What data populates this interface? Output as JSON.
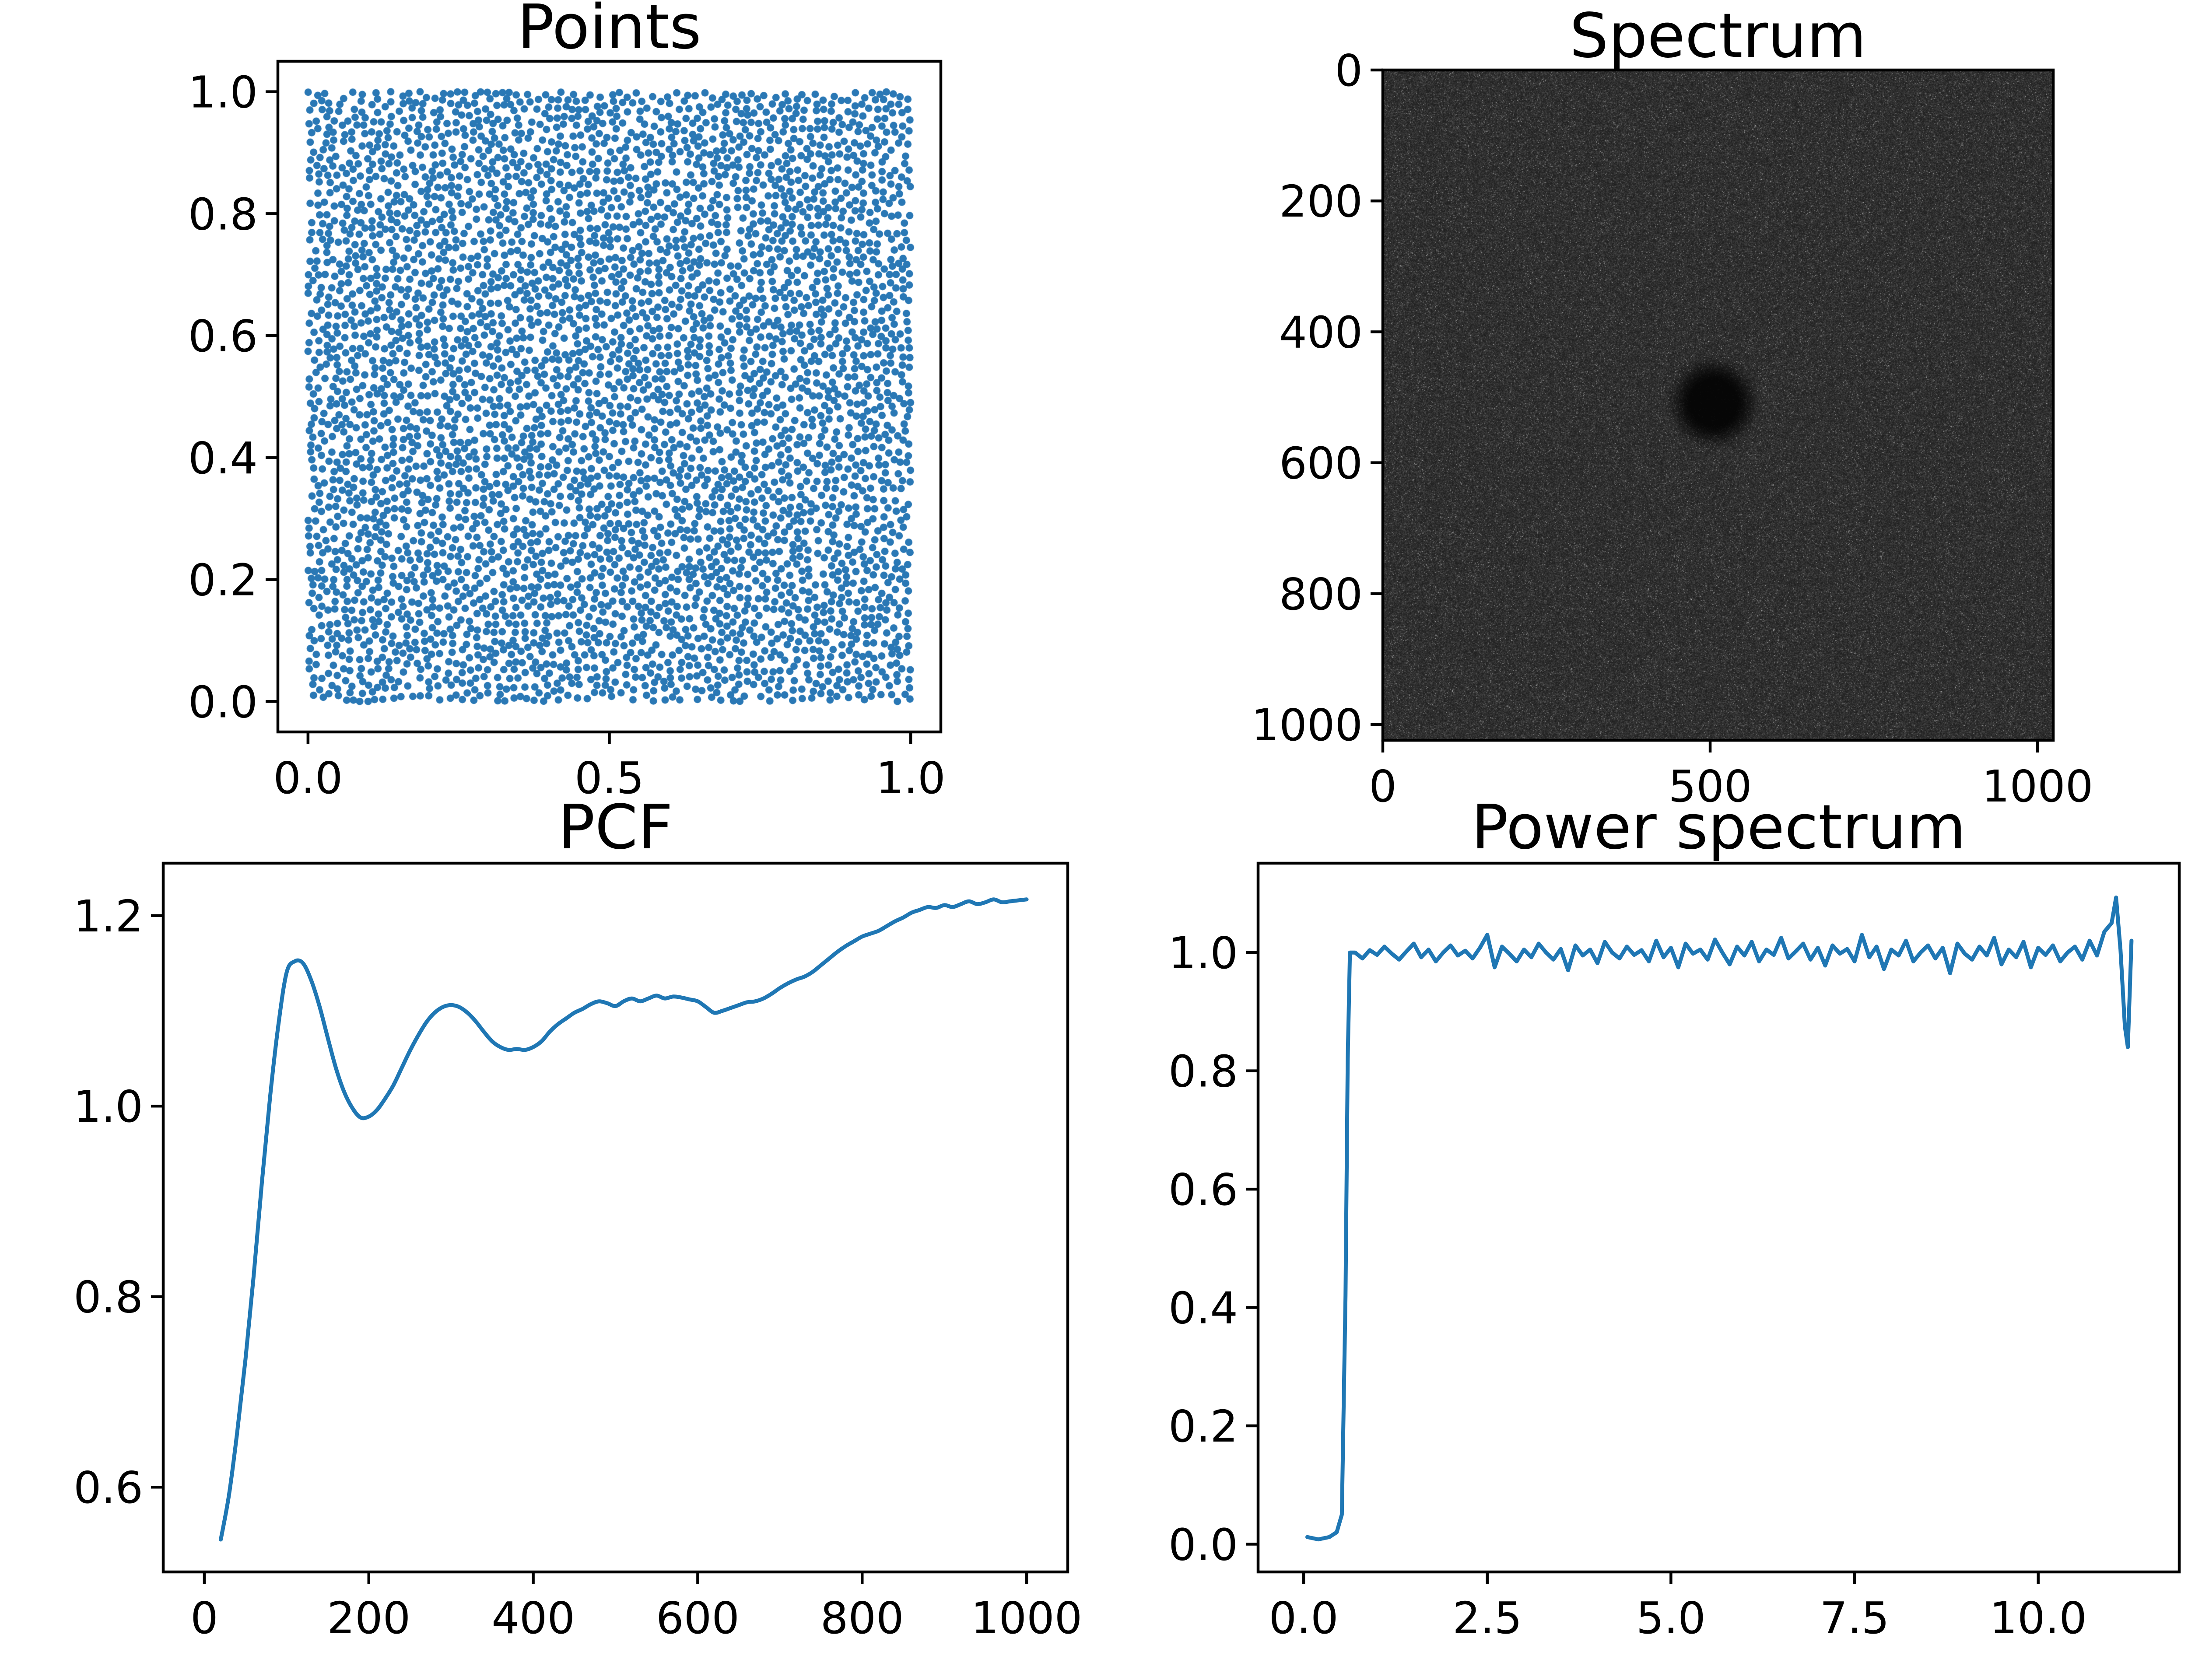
{
  "figure": {
    "background": "#ffffff"
  },
  "colors": {
    "series_blue": "#1f77b4",
    "marker_blue": "#2a78b5",
    "spine_black": "#000000",
    "text_black": "#000000",
    "spectrum_dark": "#2e2e2e"
  },
  "chart_data": [
    {
      "id": "points",
      "type": "scatter",
      "title": "Points",
      "x_tick_values": [
        0.0,
        0.5,
        1.0
      ],
      "x_tick_labels": [
        "0.0",
        "0.5",
        "1.0"
      ],
      "y_tick_values": [
        0.0,
        0.2,
        0.4,
        0.6,
        0.8,
        1.0
      ],
      "y_tick_labels": [
        "0.0",
        "0.2",
        "0.4",
        "0.6",
        "0.8",
        "1.0"
      ],
      "xlim": [
        -0.05,
        1.05
      ],
      "ylim": [
        -0.05,
        1.05
      ],
      "n_points": 4400,
      "min_distance": 0.0105,
      "marker_radius_px": 8.5,
      "distribution": "blue-noise (Poisson-disk) uniform points in unit square",
      "seed": 20240613
    },
    {
      "id": "spectrum",
      "type": "heatmap",
      "title": "Spectrum",
      "x_tick_values": [
        0,
        500,
        1000
      ],
      "x_tick_labels": [
        "0",
        "500",
        "1000"
      ],
      "y_tick_values": [
        0,
        200,
        400,
        600,
        800,
        1000
      ],
      "y_tick_labels": [
        "0",
        "200",
        "400",
        "600",
        "800",
        "1000"
      ],
      "extent": [
        0,
        1024,
        1024,
        0
      ],
      "description": "grainy grayscale Fourier magnitude image; black disk (suppressed low frequencies) at center, noise brightening to uniform beyond the disk",
      "disk_center": [
        505,
        508
      ],
      "disk_radius": 34,
      "seed": 987654321
    },
    {
      "id": "pcf",
      "type": "line",
      "title": "PCF",
      "x_tick_values": [
        0,
        200,
        400,
        600,
        800,
        1000
      ],
      "x_tick_labels": [
        "0",
        "200",
        "400",
        "600",
        "800",
        "1000"
      ],
      "y_tick_values": [
        0.6,
        0.8,
        1.0,
        1.2
      ],
      "y_tick_labels": [
        "0.6",
        "0.8",
        "1.0",
        "1.2"
      ],
      "xlim": [
        -50,
        1050
      ],
      "ylim": [
        0.511,
        1.255
      ],
      "smooth": true,
      "points": [
        [
          20,
          0.545
        ],
        [
          30,
          0.592
        ],
        [
          40,
          0.658
        ],
        [
          50,
          0.734
        ],
        [
          60,
          0.822
        ],
        [
          70,
          0.92
        ],
        [
          80,
          1.01
        ],
        [
          90,
          1.085
        ],
        [
          100,
          1.14
        ],
        [
          110,
          1.152
        ],
        [
          120,
          1.15
        ],
        [
          130,
          1.132
        ],
        [
          140,
          1.105
        ],
        [
          150,
          1.072
        ],
        [
          160,
          1.04
        ],
        [
          170,
          1.015
        ],
        [
          180,
          0.998
        ],
        [
          190,
          0.988
        ],
        [
          200,
          0.989
        ],
        [
          210,
          0.996
        ],
        [
          220,
          1.008
        ],
        [
          230,
          1.022
        ],
        [
          240,
          1.04
        ],
        [
          250,
          1.058
        ],
        [
          260,
          1.074
        ],
        [
          270,
          1.088
        ],
        [
          280,
          1.098
        ],
        [
          290,
          1.104
        ],
        [
          300,
          1.106
        ],
        [
          310,
          1.104
        ],
        [
          320,
          1.098
        ],
        [
          330,
          1.089
        ],
        [
          340,
          1.078
        ],
        [
          350,
          1.068
        ],
        [
          360,
          1.062
        ],
        [
          370,
          1.059
        ],
        [
          380,
          1.06
        ],
        [
          390,
          1.059
        ],
        [
          400,
          1.062
        ],
        [
          410,
          1.068
        ],
        [
          420,
          1.078
        ],
        [
          430,
          1.086
        ],
        [
          440,
          1.092
        ],
        [
          450,
          1.098
        ],
        [
          460,
          1.102
        ],
        [
          470,
          1.107
        ],
        [
          480,
          1.11
        ],
        [
          490,
          1.108
        ],
        [
          500,
          1.105
        ],
        [
          510,
          1.11
        ],
        [
          520,
          1.113
        ],
        [
          530,
          1.11
        ],
        [
          540,
          1.113
        ],
        [
          550,
          1.116
        ],
        [
          560,
          1.113
        ],
        [
          570,
          1.115
        ],
        [
          580,
          1.114
        ],
        [
          590,
          1.112
        ],
        [
          600,
          1.11
        ],
        [
          610,
          1.104
        ],
        [
          620,
          1.098
        ],
        [
          630,
          1.1
        ],
        [
          640,
          1.103
        ],
        [
          650,
          1.106
        ],
        [
          660,
          1.109
        ],
        [
          670,
          1.11
        ],
        [
          680,
          1.113
        ],
        [
          690,
          1.118
        ],
        [
          700,
          1.124
        ],
        [
          710,
          1.129
        ],
        [
          720,
          1.133
        ],
        [
          730,
          1.136
        ],
        [
          740,
          1.141
        ],
        [
          750,
          1.148
        ],
        [
          760,
          1.155
        ],
        [
          770,
          1.162
        ],
        [
          780,
          1.168
        ],
        [
          790,
          1.173
        ],
        [
          800,
          1.178
        ],
        [
          810,
          1.181
        ],
        [
          820,
          1.184
        ],
        [
          830,
          1.189
        ],
        [
          840,
          1.194
        ],
        [
          850,
          1.198
        ],
        [
          860,
          1.203
        ],
        [
          870,
          1.206
        ],
        [
          880,
          1.209
        ],
        [
          890,
          1.208
        ],
        [
          900,
          1.211
        ],
        [
          910,
          1.209
        ],
        [
          920,
          1.212
        ],
        [
          930,
          1.215
        ],
        [
          940,
          1.212
        ],
        [
          950,
          1.214
        ],
        [
          960,
          1.217
        ],
        [
          970,
          1.214
        ],
        [
          980,
          1.215
        ],
        [
          990,
          1.216
        ],
        [
          1000,
          1.217
        ]
      ]
    },
    {
      "id": "power",
      "type": "line",
      "title": "Power spectrum",
      "x_tick_values": [
        0.0,
        2.5,
        5.0,
        7.5,
        10.0
      ],
      "x_tick_labels": [
        "0.0",
        "2.5",
        "5.0",
        "7.5",
        "10.0"
      ],
      "y_tick_values": [
        0.0,
        0.2,
        0.4,
        0.6,
        0.8,
        1.0
      ],
      "y_tick_labels": [
        "0.0",
        "0.2",
        "0.4",
        "0.6",
        "0.8",
        "1.0"
      ],
      "xlim": [
        -0.62,
        11.92
      ],
      "ylim": [
        -0.047,
        1.151
      ],
      "smooth": false,
      "points": [
        [
          0.05,
          0.012
        ],
        [
          0.2,
          0.008
        ],
        [
          0.35,
          0.012
        ],
        [
          0.45,
          0.02
        ],
        [
          0.52,
          0.05
        ],
        [
          0.57,
          0.42
        ],
        [
          0.6,
          0.82
        ],
        [
          0.63,
          1.0
        ],
        [
          0.7,
          1.0
        ],
        [
          0.8,
          0.99
        ],
        [
          0.9,
          1.004
        ],
        [
          1.0,
          0.996
        ],
        [
          1.1,
          1.01
        ],
        [
          1.2,
          0.998
        ],
        [
          1.3,
          0.988
        ],
        [
          1.4,
          1.002
        ],
        [
          1.5,
          1.015
        ],
        [
          1.6,
          0.992
        ],
        [
          1.7,
          1.005
        ],
        [
          1.8,
          0.985
        ],
        [
          1.9,
          1.0
        ],
        [
          2.0,
          1.012
        ],
        [
          2.1,
          0.995
        ],
        [
          2.2,
          1.003
        ],
        [
          2.3,
          0.99
        ],
        [
          2.4,
          1.008
        ],
        [
          2.5,
          1.03
        ],
        [
          2.6,
          0.975
        ],
        [
          2.7,
          1.01
        ],
        [
          2.8,
          0.998
        ],
        [
          2.9,
          0.985
        ],
        [
          3.0,
          1.005
        ],
        [
          3.1,
          0.992
        ],
        [
          3.2,
          1.015
        ],
        [
          3.3,
          1.0
        ],
        [
          3.4,
          0.988
        ],
        [
          3.5,
          1.006
        ],
        [
          3.6,
          0.97
        ],
        [
          3.7,
          1.012
        ],
        [
          3.8,
          0.995
        ],
        [
          3.9,
          1.005
        ],
        [
          4.0,
          0.982
        ],
        [
          4.1,
          1.018
        ],
        [
          4.2,
          1.0
        ],
        [
          4.3,
          0.99
        ],
        [
          4.4,
          1.01
        ],
        [
          4.5,
          0.996
        ],
        [
          4.6,
          1.004
        ],
        [
          4.7,
          0.985
        ],
        [
          4.8,
          1.02
        ],
        [
          4.9,
          0.992
        ],
        [
          5.0,
          1.008
        ],
        [
          5.1,
          0.975
        ],
        [
          5.2,
          1.015
        ],
        [
          5.3,
          0.998
        ],
        [
          5.4,
          1.005
        ],
        [
          5.5,
          0.988
        ],
        [
          5.6,
          1.022
        ],
        [
          5.7,
          1.0
        ],
        [
          5.8,
          0.98
        ],
        [
          5.9,
          1.01
        ],
        [
          6.0,
          0.995
        ],
        [
          6.1,
          1.018
        ],
        [
          6.2,
          0.985
        ],
        [
          6.3,
          1.005
        ],
        [
          6.4,
          0.996
        ],
        [
          6.5,
          1.025
        ],
        [
          6.6,
          0.99
        ],
        [
          6.7,
          1.002
        ],
        [
          6.8,
          1.015
        ],
        [
          6.9,
          0.988
        ],
        [
          7.0,
          1.008
        ],
        [
          7.1,
          0.978
        ],
        [
          7.2,
          1.012
        ],
        [
          7.3,
          0.998
        ],
        [
          7.4,
          1.006
        ],
        [
          7.5,
          0.985
        ],
        [
          7.6,
          1.03
        ],
        [
          7.7,
          0.992
        ],
        [
          7.8,
          1.01
        ],
        [
          7.9,
          0.972
        ],
        [
          8.0,
          1.005
        ],
        [
          8.1,
          0.995
        ],
        [
          8.2,
          1.02
        ],
        [
          8.3,
          0.985
        ],
        [
          8.4,
          1.0
        ],
        [
          8.5,
          1.012
        ],
        [
          8.6,
          0.99
        ],
        [
          8.7,
          1.008
        ],
        [
          8.8,
          0.965
        ],
        [
          8.9,
          1.015
        ],
        [
          9.0,
          0.998
        ],
        [
          9.1,
          0.988
        ],
        [
          9.2,
          1.01
        ],
        [
          9.3,
          0.995
        ],
        [
          9.4,
          1.025
        ],
        [
          9.5,
          0.98
        ],
        [
          9.6,
          1.005
        ],
        [
          9.7,
          0.992
        ],
        [
          9.8,
          1.018
        ],
        [
          9.9,
          0.975
        ],
        [
          10.0,
          1.008
        ],
        [
          10.1,
          0.996
        ],
        [
          10.2,
          1.012
        ],
        [
          10.3,
          0.985
        ],
        [
          10.4,
          1.0
        ],
        [
          10.5,
          1.01
        ],
        [
          10.6,
          0.988
        ],
        [
          10.7,
          1.02
        ],
        [
          10.8,
          0.995
        ],
        [
          10.9,
          1.035
        ],
        [
          11.0,
          1.05
        ],
        [
          11.06,
          1.093
        ],
        [
          11.12,
          1.005
        ],
        [
          11.18,
          0.875
        ],
        [
          11.22,
          0.84
        ],
        [
          11.27,
          1.02
        ]
      ]
    }
  ]
}
